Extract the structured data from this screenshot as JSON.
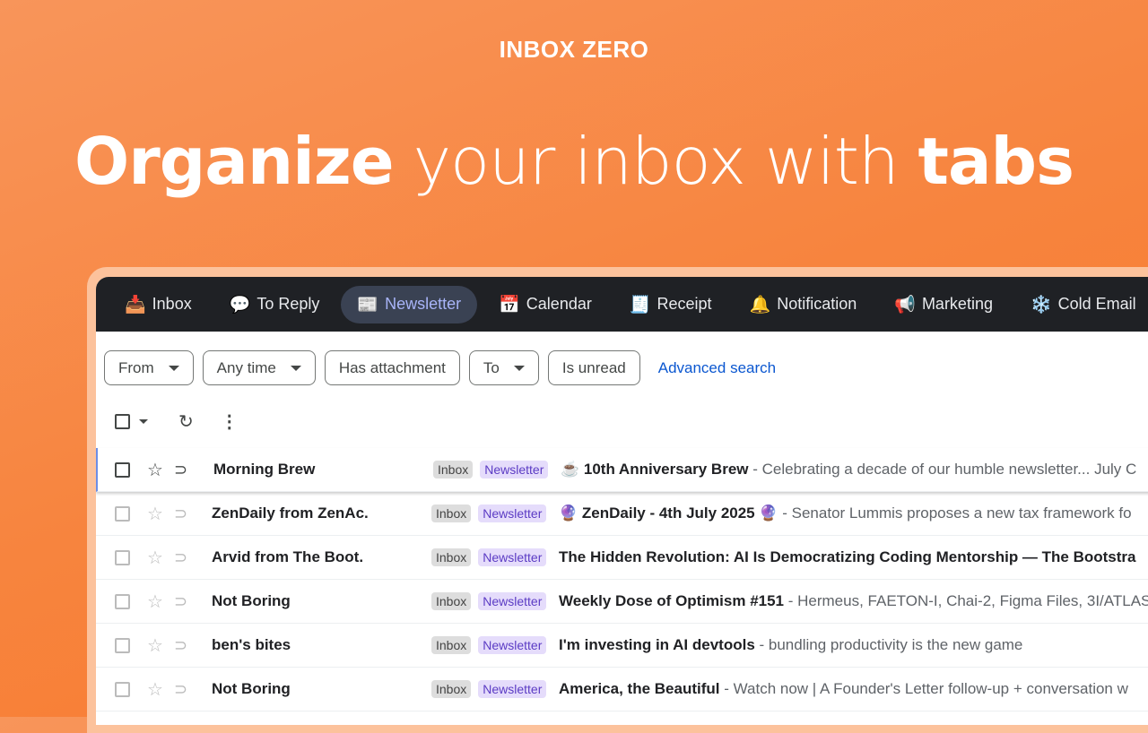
{
  "brand": "INBOX ZERO",
  "headline": {
    "part1": "Organize",
    "part2": " your inbox with ",
    "part3": "tabs"
  },
  "tabs": [
    {
      "label": "Inbox",
      "icon": "📥"
    },
    {
      "label": "To Reply",
      "icon": "💬"
    },
    {
      "label": "Newsletter",
      "icon": "📰",
      "active": true
    },
    {
      "label": "Calendar",
      "icon": "📅"
    },
    {
      "label": "Receipt",
      "icon": "🧾"
    },
    {
      "label": "Notification",
      "icon": "🔔"
    },
    {
      "label": "Marketing",
      "icon": "📢"
    },
    {
      "label": "Cold Email",
      "icon": "❄️"
    }
  ],
  "filters": {
    "from": "From",
    "any_time": "Any time",
    "has_attachment": "Has attachment",
    "to": "To",
    "is_unread": "Is unread",
    "advanced": "Advanced search"
  },
  "colors": {
    "accent": "#0b57d0",
    "newsletter_label": "#e5dcfb",
    "tab_bar": "#1f2125"
  },
  "emails": [
    {
      "sender": "Morning Brew",
      "labels": [
        "Inbox",
        "Newsletter"
      ],
      "subject": "☕ 10th Anniversary Brew",
      "snippet": " - Celebrating a decade of our humble newsletter... July C"
    },
    {
      "sender": "ZenDaily from ZenAc.",
      "labels": [
        "Inbox",
        "Newsletter"
      ],
      "subject": "🔮 ZenDaily - 4th July 2025 🔮",
      "snippet": " - Senator Lummis proposes a new tax framework fo"
    },
    {
      "sender": "Arvid from The Boot.",
      "labels": [
        "Inbox",
        "Newsletter"
      ],
      "subject": "The Hidden Revolution: AI Is Democratizing Coding Mentorship — The Bootstra",
      "snippet": ""
    },
    {
      "sender": "Not Boring",
      "labels": [
        "Inbox",
        "Newsletter"
      ],
      "subject": "Weekly Dose of Optimism #151",
      "snippet": " - Hermeus, FAETON-I, Chai-2, Figma Files, 3I/ATLAS"
    },
    {
      "sender": "ben's bites",
      "labels": [
        "Inbox",
        "Newsletter"
      ],
      "subject": "I'm investing in AI devtools",
      "snippet": " - bundling productivity is the new game"
    },
    {
      "sender": "Not Boring",
      "labels": [
        "Inbox",
        "Newsletter"
      ],
      "subject": "America, the Beautiful",
      "snippet": " - Watch now | A Founder's Letter follow-up + conversation w"
    }
  ]
}
